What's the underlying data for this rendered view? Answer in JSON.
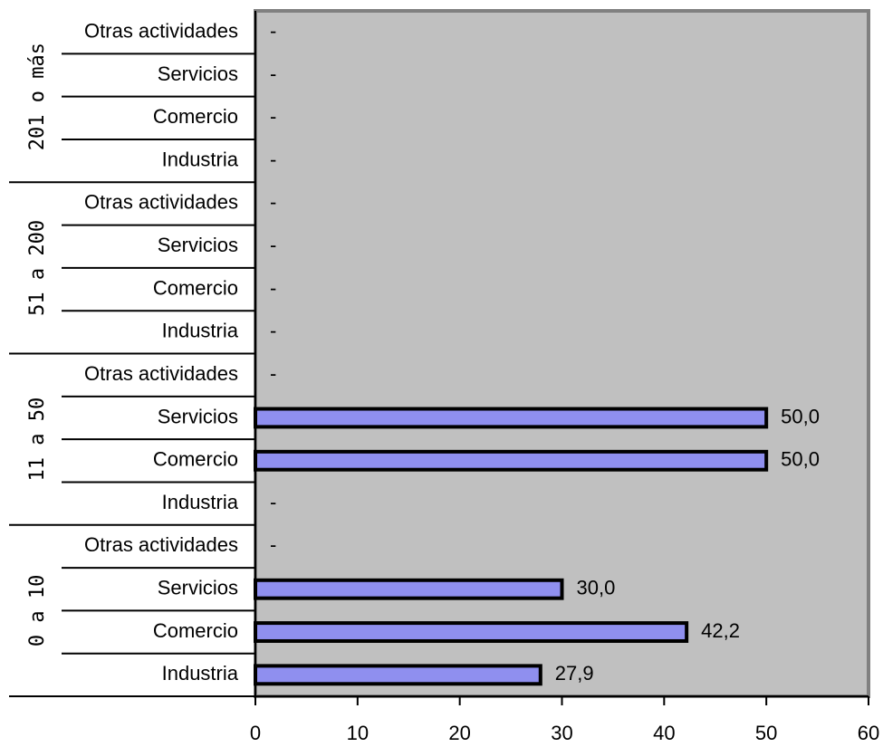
{
  "chart_data": {
    "type": "bar",
    "orientation": "horizontal",
    "groups": [
      {
        "name": "201 o más",
        "rows": [
          {
            "label": "Otras actividades",
            "value": null,
            "display": "-"
          },
          {
            "label": "Servicios",
            "value": null,
            "display": "-"
          },
          {
            "label": "Comercio",
            "value": null,
            "display": "-"
          },
          {
            "label": "Industria",
            "value": null,
            "display": "-"
          }
        ]
      },
      {
        "name": "51 a 200",
        "rows": [
          {
            "label": "Otras actividades",
            "value": null,
            "display": "-"
          },
          {
            "label": "Servicios",
            "value": null,
            "display": "-"
          },
          {
            "label": "Comercio",
            "value": null,
            "display": "-"
          },
          {
            "label": "Industria",
            "value": null,
            "display": "-"
          }
        ]
      },
      {
        "name": "11 a 50",
        "rows": [
          {
            "label": "Otras actividades",
            "value": null,
            "display": "-"
          },
          {
            "label": "Servicios",
            "value": 50.0,
            "display": "50,0"
          },
          {
            "label": "Comercio",
            "value": 50.0,
            "display": "50,0"
          },
          {
            "label": "Industria",
            "value": null,
            "display": "-"
          }
        ]
      },
      {
        "name": "0 a 10",
        "rows": [
          {
            "label": "Otras actividades",
            "value": null,
            "display": "-"
          },
          {
            "label": "Servicios",
            "value": 30.0,
            "display": "30,0"
          },
          {
            "label": "Comercio",
            "value": 42.2,
            "display": "42,2"
          },
          {
            "label": "Industria",
            "value": 27.9,
            "display": "27,9"
          }
        ]
      }
    ],
    "xlim": [
      0,
      60
    ],
    "xticks": [
      0,
      10,
      20,
      30,
      40,
      50,
      60
    ],
    "bar_color": "#8f8fef",
    "bar_border_color": "#000000",
    "plot_background": "#c0c0c0",
    "plot_border_color": "#808080",
    "grid": false,
    "legend": "none"
  }
}
